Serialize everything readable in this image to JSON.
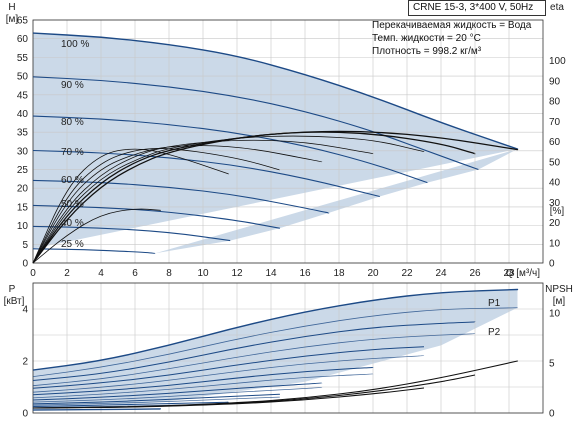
{
  "header": {
    "pump_model": "CRNE 15-3, 3*400 V, 50Hz",
    "liquid_line": "Перекачиваемая жидкость = Вода",
    "temp_line": "Темп. жидкости = 20 °C",
    "density_line": "Плотность = 998.2 кг/м³"
  },
  "chart_data": [
    {
      "type": "line",
      "title": "",
      "xlabel": "Q [м³/ч]",
      "ylabel": "H [м]",
      "y2label": "eta [%]",
      "xlim": [
        0,
        30
      ],
      "ylim": [
        0,
        65
      ],
      "y2lim": [
        0,
        120
      ],
      "x_ticks": [
        0,
        2,
        4,
        6,
        8,
        10,
        12,
        14,
        16,
        18,
        20,
        22,
        24,
        26,
        28
      ],
      "y_ticks": [
        0,
        5,
        10,
        15,
        20,
        25,
        30,
        35,
        40,
        45,
        50,
        55,
        60,
        65
      ],
      "y2_ticks": [
        0,
        10,
        20,
        30,
        40,
        50,
        60,
        70,
        80,
        90,
        100
      ],
      "grid": true,
      "speed_labels": [
        "100 %",
        "90 %",
        "80 %",
        "70 %",
        "60 %",
        "50 %",
        "40 %",
        "25 %"
      ],
      "head_curves": [
        {
          "name": "100 %",
          "x": [
            0,
            4,
            8,
            12,
            16,
            20,
            24,
            28.5
          ],
          "y": [
            61.5,
            60.5,
            58.5,
            55.5,
            50.5,
            44.5,
            37.5,
            30.5
          ]
        },
        {
          "name": "90 %",
          "x": [
            0,
            4,
            8,
            12,
            16,
            20,
            24,
            26.2
          ],
          "y": [
            49.8,
            48.9,
            47.2,
            44.6,
            40.6,
            35.3,
            28.6,
            25
          ]
        },
        {
          "name": "80 %",
          "x": [
            0,
            4,
            8,
            12,
            16,
            20,
            23.2
          ],
          "y": [
            39.3,
            38.6,
            37.1,
            34.8,
            31.4,
            26.6,
            21.5
          ]
        },
        {
          "name": "70 %",
          "x": [
            0,
            4,
            8,
            12,
            16,
            20.4
          ],
          "y": [
            30.1,
            29.5,
            28.2,
            26.1,
            22.7,
            17.8
          ]
        },
        {
          "name": "60 %",
          "x": [
            0,
            4,
            8,
            12,
            16,
            17.4
          ],
          "y": [
            22.1,
            21.6,
            20.3,
            18.2,
            14.7,
            13.4
          ]
        },
        {
          "name": "50 %",
          "x": [
            0,
            4,
            8,
            12,
            14.5
          ],
          "y": [
            15.4,
            14.9,
            13.7,
            11.4,
            9.3
          ]
        },
        {
          "name": "40 %",
          "x": [
            0,
            4,
            8,
            11.6
          ],
          "y": [
            9.8,
            9.4,
            8.3,
            6
          ]
        },
        {
          "name": "25 %",
          "x": [
            0,
            3,
            6,
            7.2
          ],
          "y": [
            3.8,
            3.6,
            3,
            2.6
          ]
        }
      ],
      "eta_curves": [
        {
          "x": [
            0,
            2,
            4,
            6,
            8,
            12,
            16,
            20,
            24,
            28.5
          ],
          "y": [
            0,
            22,
            38,
            48,
            55,
            62,
            65,
            65,
            62,
            56
          ]
        },
        {
          "x": [
            0,
            2,
            4,
            6,
            8,
            12,
            16,
            20,
            24,
            26
          ],
          "y": [
            0,
            24,
            40,
            50,
            56,
            62,
            65,
            64,
            59,
            54
          ]
        },
        {
          "x": [
            0,
            2,
            4,
            6,
            8,
            12,
            16,
            20,
            23
          ],
          "y": [
            0,
            26,
            42,
            51,
            57,
            62,
            63,
            61,
            55
          ]
        },
        {
          "x": [
            0,
            2,
            4,
            6,
            8,
            12,
            16,
            20
          ],
          "y": [
            0,
            28,
            44,
            53,
            58,
            61,
            60,
            54
          ]
        },
        {
          "x": [
            0,
            2,
            4,
            6,
            8,
            12,
            17
          ],
          "y": [
            0,
            31,
            47,
            54,
            58,
            58,
            50
          ]
        },
        {
          "x": [
            0,
            2,
            4,
            6,
            8,
            12,
            14.5
          ],
          "y": [
            0,
            34,
            50,
            56,
            57,
            52,
            46
          ]
        },
        {
          "x": [
            0,
            2,
            4,
            6,
            8,
            11.5
          ],
          "y": [
            0,
            38,
            54,
            57,
            54,
            44
          ]
        },
        {
          "x": [
            0,
            2,
            4,
            6,
            7.5
          ],
          "y": [
            0,
            14,
            24,
            27,
            26
          ]
        }
      ]
    },
    {
      "type": "line",
      "title": "",
      "ylabel": "P [кВт]",
      "y2label": "NPSH [м]",
      "xlim": [
        0,
        30
      ],
      "ylim": [
        0,
        5
      ],
      "y2lim": [
        0,
        13
      ],
      "y_ticks": [
        0,
        2,
        4
      ],
      "y2_ticks": [
        0,
        5,
        10
      ],
      "grid": true,
      "series_labels": [
        "P1",
        "P2"
      ],
      "p1_curves": [
        {
          "x": [
            0,
            4,
            8,
            12,
            16,
            20,
            24,
            28.5
          ],
          "y": [
            1.65,
            2.0,
            2.6,
            3.3,
            3.9,
            4.35,
            4.65,
            4.75
          ]
        },
        {
          "x": [
            0,
            4,
            8,
            12,
            16,
            20,
            24,
            26
          ],
          "y": [
            1.25,
            1.5,
            1.95,
            2.5,
            2.95,
            3.3,
            3.45,
            3.5
          ]
        },
        {
          "x": [
            0,
            4,
            8,
            12,
            16,
            20,
            23
          ],
          "y": [
            0.95,
            1.15,
            1.45,
            1.85,
            2.2,
            2.45,
            2.55
          ]
        },
        {
          "x": [
            0,
            4,
            8,
            12,
            16,
            20
          ],
          "y": [
            0.7,
            0.85,
            1.05,
            1.35,
            1.6,
            1.75
          ]
        },
        {
          "x": [
            0,
            4,
            8,
            12,
            17
          ],
          "y": [
            0.5,
            0.6,
            0.75,
            0.95,
            1.15
          ]
        },
        {
          "x": [
            0,
            4,
            8,
            12,
            14.5
          ],
          "y": [
            0.35,
            0.42,
            0.52,
            0.65,
            0.72
          ]
        },
        {
          "x": [
            0,
            4,
            8,
            11.5
          ],
          "y": [
            0.25,
            0.3,
            0.36,
            0.42
          ]
        },
        {
          "x": [
            0,
            4,
            7.5
          ],
          "y": [
            0.12,
            0.14,
            0.16
          ]
        }
      ],
      "p2_curves": [
        {
          "x": [
            0,
            4,
            8,
            12,
            16,
            20,
            24,
            28.5
          ],
          "y": [
            1.4,
            1.75,
            2.25,
            2.85,
            3.35,
            3.75,
            4.0,
            4.05
          ]
        },
        {
          "x": [
            0,
            4,
            8,
            12,
            16,
            20,
            24,
            26
          ],
          "y": [
            1.05,
            1.3,
            1.7,
            2.15,
            2.55,
            2.85,
            3.0,
            3.05
          ]
        },
        {
          "x": [
            0,
            4,
            8,
            12,
            16,
            20,
            23
          ],
          "y": [
            0.8,
            0.98,
            1.25,
            1.6,
            1.9,
            2.1,
            2.2
          ]
        },
        {
          "x": [
            0,
            4,
            8,
            12,
            16,
            20
          ],
          "y": [
            0.58,
            0.72,
            0.9,
            1.15,
            1.38,
            1.5
          ]
        },
        {
          "x": [
            0,
            4,
            8,
            12,
            17
          ],
          "y": [
            0.42,
            0.5,
            0.63,
            0.8,
            0.98
          ]
        },
        {
          "x": [
            0,
            4,
            8,
            12,
            14.5
          ],
          "y": [
            0.3,
            0.36,
            0.44,
            0.55,
            0.61
          ]
        },
        {
          "x": [
            0,
            4,
            8,
            11.5
          ],
          "y": [
            0.2,
            0.25,
            0.3,
            0.35
          ]
        },
        {
          "x": [
            0,
            4,
            7.5
          ],
          "y": [
            0.1,
            0.12,
            0.14
          ]
        }
      ],
      "npsh_curves": [
        {
          "x": [
            0,
            6,
            12,
            16,
            20,
            24,
            28.5
          ],
          "y": [
            0.5,
            0.6,
            1.0,
            1.5,
            2.3,
            3.5,
            5.2
          ]
        },
        {
          "x": [
            0,
            6,
            12,
            16,
            20,
            24,
            26
          ],
          "y": [
            0.5,
            0.6,
            0.95,
            1.4,
            2.1,
            3.1,
            3.8
          ]
        },
        {
          "x": [
            0,
            6,
            12,
            16,
            20,
            23
          ],
          "y": [
            0.5,
            0.58,
            0.9,
            1.3,
            1.9,
            2.5
          ]
        }
      ]
    }
  ]
}
